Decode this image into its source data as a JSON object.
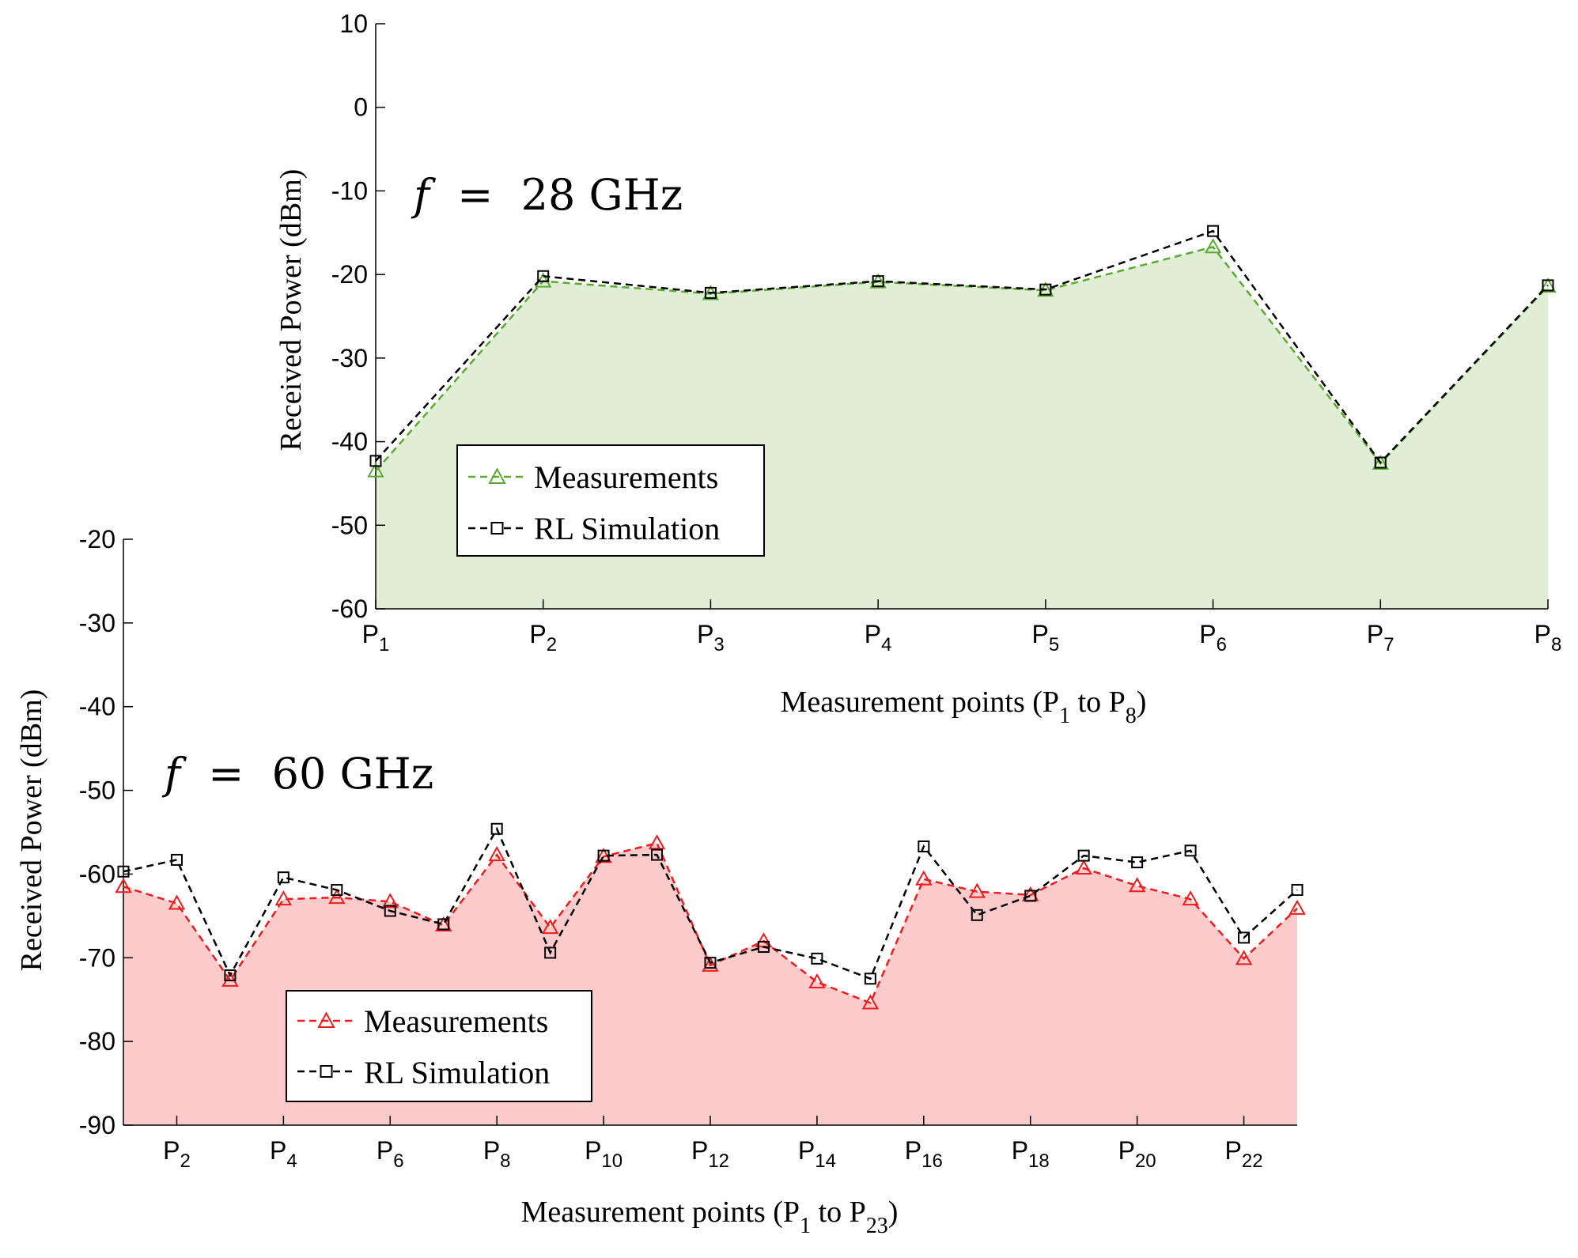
{
  "chart_data": [
    {
      "id": "top",
      "type": "area",
      "annotation": "f = 28 GHz",
      "annotation_symbol": "f",
      "annotation_equals": "=",
      "annotation_value": "28 GHz",
      "xlabel": "Measurement points (P1 to P8)",
      "xlabel_parts": {
        "pre": "Measurement points (P",
        "sub1": "1",
        "mid": " to P",
        "sub2": "8",
        "post": ")"
      },
      "ylabel": "Received Power (dBm)",
      "ylim": [
        -60,
        10
      ],
      "yticks": [
        "10",
        "0",
        "-10",
        "-20",
        "-30",
        "-40",
        "-50",
        "-60"
      ],
      "x": [
        1,
        2,
        3,
        4,
        5,
        6,
        7,
        8
      ],
      "xticks": [
        {
          "label": "P",
          "sub": "1"
        },
        {
          "label": "P",
          "sub": "2"
        },
        {
          "label": "P",
          "sub": "3"
        },
        {
          "label": "P",
          "sub": "4"
        },
        {
          "label": "P",
          "sub": "5"
        },
        {
          "label": "P",
          "sub": "6"
        },
        {
          "label": "P",
          "sub": "7"
        },
        {
          "label": "P",
          "sub": "8"
        }
      ],
      "series": [
        {
          "name": "Measurements",
          "marker": "triangle",
          "color": "#5aaa2e",
          "fill": "#dfeed5",
          "values": [
            -43.5,
            -20.8,
            -22.3,
            -20.9,
            -21.9,
            -16.7,
            -42.6,
            -21.4
          ]
        },
        {
          "name": "RL Simulation",
          "marker": "square",
          "color": "#000000",
          "values": [
            -42.3,
            -20.2,
            -22.2,
            -20.8,
            -21.8,
            -14.8,
            -42.5,
            -21.3
          ]
        }
      ],
      "legend": [
        "Measurements",
        "RL Simulation"
      ],
      "legend_position": "lower-left"
    },
    {
      "id": "bottom",
      "type": "area",
      "annotation": "f = 60 GHz",
      "annotation_symbol": "f",
      "annotation_equals": "=",
      "annotation_value": "60 GHz",
      "xlabel": "Measurement points (P1 to P23)",
      "xlabel_parts": {
        "pre": "Measurement points (P",
        "sub1": "1",
        "mid": " to P",
        "sub2": "23",
        "post": ")"
      },
      "ylabel": "Received Power (dBm)",
      "ylim": [
        -90,
        -20
      ],
      "yticks": [
        "-20",
        "-30",
        "-40",
        "-50",
        "-60",
        "-70",
        "-80",
        "-90"
      ],
      "x": [
        1,
        2,
        3,
        4,
        5,
        6,
        7,
        8,
        9,
        10,
        11,
        12,
        13,
        14,
        15,
        16,
        17,
        18,
        19,
        20,
        21,
        22,
        23
      ],
      "xticks": [
        {
          "x": 2,
          "label": "P",
          "sub": "2"
        },
        {
          "x": 4,
          "label": "P",
          "sub": "4"
        },
        {
          "x": 6,
          "label": "P",
          "sub": "6"
        },
        {
          "x": 8,
          "label": "P",
          "sub": "8"
        },
        {
          "x": 10,
          "label": "P",
          "sub": "10"
        },
        {
          "x": 12,
          "label": "P",
          "sub": "12"
        },
        {
          "x": 14,
          "label": "P",
          "sub": "14"
        },
        {
          "x": 16,
          "label": "P",
          "sub": "16"
        },
        {
          "x": 18,
          "label": "P",
          "sub": "18"
        },
        {
          "x": 20,
          "label": "P",
          "sub": "20"
        },
        {
          "x": 22,
          "label": "P",
          "sub": "22"
        }
      ],
      "series": [
        {
          "name": "Measurements",
          "marker": "triangle",
          "color": "#ee1c1c",
          "fill": "#fdcbcb",
          "values": [
            -61.5,
            -63.5,
            -72.7,
            -63.0,
            -62.8,
            -63.3,
            -66.1,
            -57.7,
            -66.4,
            -57.9,
            -56.3,
            -70.9,
            -68.0,
            -72.9,
            -75.4,
            -60.6,
            -62.1,
            -62.5,
            -59.3,
            -61.4,
            -63.0,
            -70.1,
            -64.1
          ]
        },
        {
          "name": "RL Simulation",
          "marker": "square",
          "color": "#000000",
          "values": [
            -59.7,
            -58.3,
            -72.1,
            -60.4,
            -61.9,
            -64.4,
            -66.0,
            -54.6,
            -69.4,
            -57.8,
            -57.7,
            -70.6,
            -68.7,
            -70.1,
            -72.5,
            -56.7,
            -64.9,
            -62.6,
            -57.8,
            -58.6,
            -57.2,
            -67.6,
            -61.9
          ]
        }
      ],
      "legend": [
        "Measurements",
        "RL Simulation"
      ],
      "legend_position": "lower-left"
    }
  ]
}
